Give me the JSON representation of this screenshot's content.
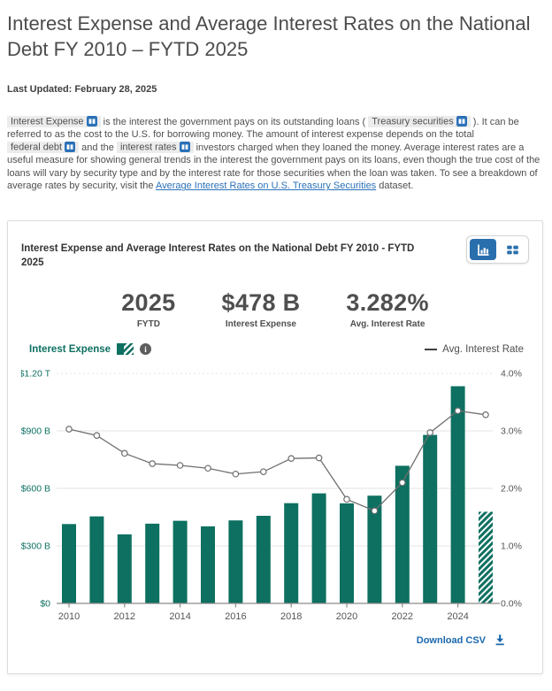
{
  "page": {
    "title": "Interest Expense and Average Interest Rates on the National Debt FY 2010 – FYTD 2025",
    "last_updated": "Last Updated: February 28, 2025"
  },
  "intro": {
    "t0": "Interest Expense",
    "s0": " is the interest the government pays on its outstanding loans ( ",
    "t1": "Treasury securities",
    "s1": " ). It can be referred to as the cost to the U.S. for borrowing money. The amount of interest expense depends on the total ",
    "t2": "federal debt",
    "s2": " and the ",
    "t3": "interest rates",
    "s3": " investors charged when they loaned the money. Average interest rates are a useful measure for showing general trends in the interest the government pays on its loans, even though the true cost of the loans will vary by security type and by the interest rate for those securities when the loan was taken. To see a breakdown of average rates by security, visit the ",
    "link": "Average Interest Rates on U.S. Treasury Securities",
    "s4": " dataset."
  },
  "card": {
    "title": "Interest Expense and Average Interest Rates on the National Debt FY 2010 - FYTD 2025",
    "stats": [
      {
        "value": "2025",
        "label": "FYTD"
      },
      {
        "value": "$478 B",
        "label": "Interest Expense"
      },
      {
        "value": "3.282%",
        "label": "Avg. Interest Rate"
      }
    ],
    "legend": {
      "bars": "Interest Expense",
      "line": "Avg. Interest Rate"
    },
    "download_label": "Download CSV"
  },
  "icons": {
    "info": "i"
  },
  "chart_data": {
    "type": "bar",
    "subtype": "bar-with-line-overlay",
    "title": "Interest Expense and Average Interest Rates on the National Debt FY 2010 - FYTD 2025",
    "categories": [
      "2010",
      "2011",
      "2012",
      "2013",
      "2014",
      "2015",
      "2016",
      "2017",
      "2018",
      "2019",
      "2020",
      "2021",
      "2022",
      "2023",
      "2024",
      "2025"
    ],
    "series": [
      {
        "name": "Interest Expense",
        "type": "bar",
        "unit": "$B",
        "values": [
          414,
          454,
          360,
          416,
          431,
          402,
          433,
          457,
          523,
          574,
          522,
          562,
          718,
          879,
          1133,
          478
        ]
      },
      {
        "name": "Avg. Interest Rate",
        "type": "line",
        "unit": "%",
        "values": [
          3.03,
          2.92,
          2.61,
          2.43,
          2.4,
          2.35,
          2.25,
          2.29,
          2.52,
          2.53,
          1.81,
          1.61,
          2.1,
          2.97,
          3.35,
          3.28
        ]
      }
    ],
    "left_axis": {
      "ticks": [
        "$1.20 T",
        "$900 B",
        "$600 B",
        "$300 B",
        "$0"
      ],
      "max_B": 1200,
      "min_B": 0
    },
    "right_axis": {
      "ticks": [
        "4.0%",
        "3.0%",
        "2.0%",
        "1.0%",
        "0.0%"
      ],
      "max_pct": 4,
      "min_pct": 0
    },
    "x_tick_labels": [
      "2010",
      "2012",
      "2014",
      "2016",
      "2018",
      "2020",
      "2022",
      "2024"
    ],
    "last_bar_hatched": true,
    "grid": true,
    "legend_position": "above",
    "colors": {
      "bar": "#0d7061",
      "line": "#6f6f6f",
      "grid": "#e3e3e3",
      "axis": "#8a8a8a",
      "axis_text": "#555555"
    }
  }
}
